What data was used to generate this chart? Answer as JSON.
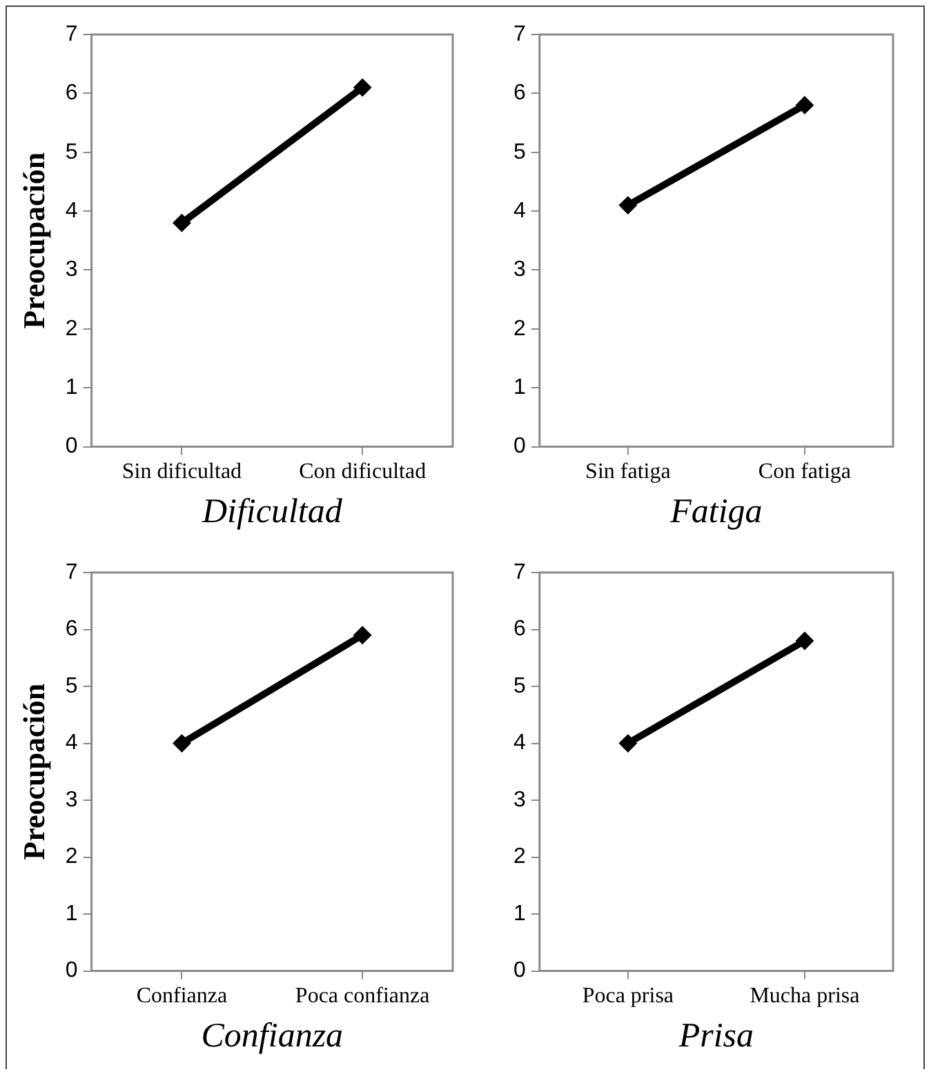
{
  "chart_data": [
    {
      "type": "line",
      "categories": [
        "Sin dificultad",
        "Con dificultad"
      ],
      "values": [
        3.8,
        6.1
      ],
      "color": "#000000",
      "xlabel": "Dificultad",
      "ylabel": "Preocupación",
      "ylim": [
        0,
        7
      ],
      "yticks": [
        0,
        1,
        2,
        3,
        4,
        5,
        6,
        7
      ],
      "marker": "diamond",
      "line_style": "solid",
      "grid": false,
      "legend": false
    },
    {
      "type": "line",
      "categories": [
        "Sin fatiga",
        "Con fatiga"
      ],
      "values": [
        4.1,
        5.8
      ],
      "color": "#000000",
      "xlabel": "Fatiga",
      "ylim": [
        0,
        7
      ],
      "yticks": [
        0,
        1,
        2,
        3,
        4,
        5,
        6,
        7
      ],
      "marker": "diamond",
      "line_style": "solid",
      "grid": false,
      "legend": false
    },
    {
      "type": "line",
      "categories": [
        "Confianza",
        "Poca confianza"
      ],
      "values": [
        4.0,
        5.9
      ],
      "color": "#000000",
      "xlabel": "Confianza",
      "ylabel": "Preocupación",
      "ylim": [
        0,
        7
      ],
      "yticks": [
        0,
        1,
        2,
        3,
        4,
        5,
        6,
        7
      ],
      "marker": "diamond",
      "line_style": "solid",
      "grid": false,
      "legend": false
    },
    {
      "type": "line",
      "categories": [
        "Poca prisa",
        "Mucha prisa"
      ],
      "values": [
        4.0,
        5.8
      ],
      "color": "#000000",
      "xlabel": "Prisa",
      "ylim": [
        0,
        7
      ],
      "yticks": [
        0,
        1,
        2,
        3,
        4,
        5,
        6,
        7
      ],
      "marker": "diamond",
      "line_style": "solid",
      "grid": false,
      "legend": false
    }
  ]
}
